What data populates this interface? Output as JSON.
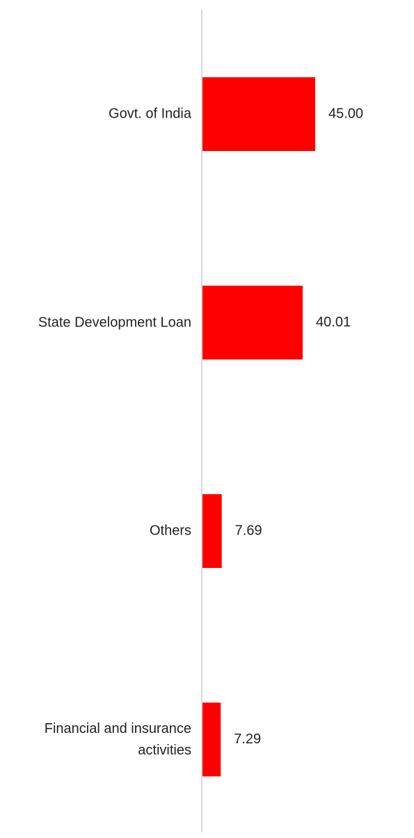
{
  "chart_data": {
    "type": "hbar",
    "categories": [
      "Govt. of India",
      "State Development Loan",
      "Others",
      "Financial and insurance activities"
    ],
    "values": [
      45.0,
      40.01,
      7.69,
      7.29
    ],
    "value_labels": [
      "45.00",
      "40.01",
      "7.69",
      "7.29"
    ],
    "color": "#ff0000"
  }
}
